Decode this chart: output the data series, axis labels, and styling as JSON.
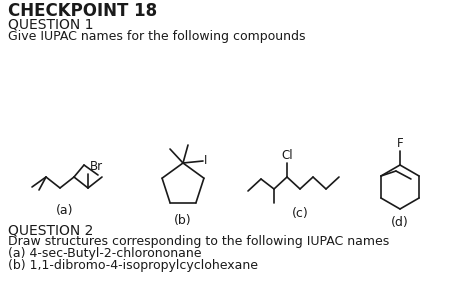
{
  "title": "CHECKPOINT 18",
  "q1_label": "QUESTION 1",
  "q1_text": "Give IUPAC names for the following compounds",
  "q2_label": "QUESTION 2",
  "q2_text": "Draw structures corresponding to the following IUPAC names",
  "q2_a": "(a) 4-sec-Butyl-2-chlorononane",
  "q2_b": "(b) 1,1-dibromo-4-isopropylcyclohexane",
  "label_a": "(a)",
  "label_b": "(b)",
  "label_c": "(c)",
  "label_d": "(d)",
  "bg_color": "#ffffff",
  "line_color": "#1a1a1a",
  "text_color": "#1a1a1a",
  "font_size_title": 12,
  "font_size_q": 10,
  "font_size_text": 9,
  "font_size_label": 9,
  "font_size_atom": 8.5
}
